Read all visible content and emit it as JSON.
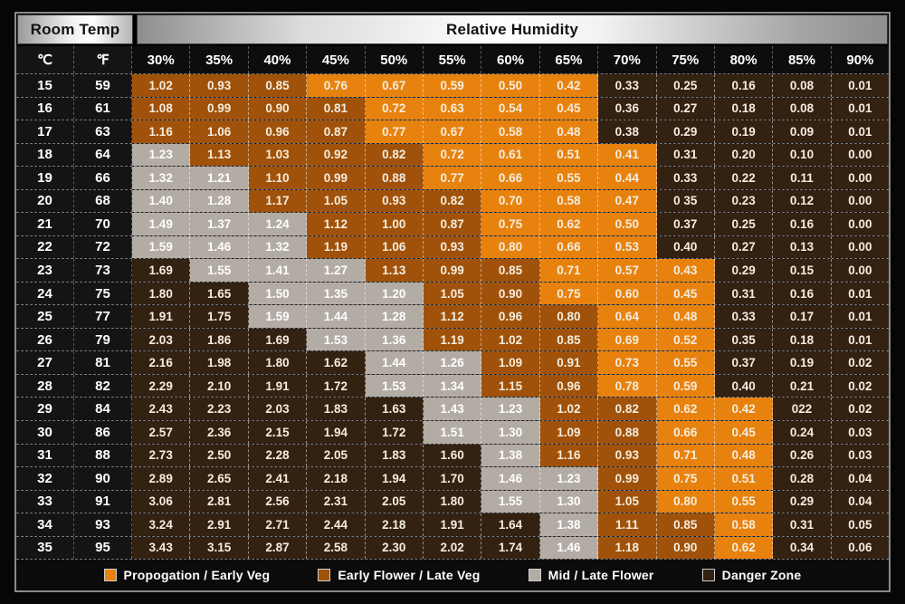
{
  "header": {
    "room_temp": "Room Temp",
    "relative_humidity": "Relative Humidity"
  },
  "columns": {
    "celsius": "℃",
    "fahrenheit": "℉"
  },
  "zone_colors": {
    "P": "#E8820E",
    "E": "#A0520A",
    "M": "#B3ACA4",
    "D": "#332112"
  },
  "legend": [
    {
      "label": "Propogation / Early Veg",
      "zone": "P"
    },
    {
      "label": "Early Flower / Late Veg",
      "zone": "E"
    },
    {
      "label": "Mid / Late Flower",
      "zone": "M"
    },
    {
      "label": "Danger Zone",
      "zone": "D"
    }
  ],
  "chart_data": {
    "type": "heatmap",
    "title": "VPD by Room Temp and Relative Humidity",
    "xlabel": "Relative Humidity",
    "ylabel": "Room Temp",
    "x": [
      "30%",
      "35%",
      "40%",
      "45%",
      "50%",
      "55%",
      "60%",
      "65%",
      "70%",
      "75%",
      "80%",
      "85%",
      "90%"
    ],
    "zone_legend": {
      "P": "Propogation / Early Veg",
      "E": "Early Flower / Late Veg",
      "M": "Mid / Late Flower",
      "D": "Danger Zone"
    },
    "rows": [
      {
        "c": "15",
        "f": "59",
        "values": [
          "1.02",
          "0.93",
          "0.85",
          "0.76",
          "0.67",
          "0.59",
          "0.50",
          "0.42",
          "0.33",
          "0.25",
          "0.16",
          "0.08",
          "0.01"
        ],
        "zones": "EEEPPPPPDDDDD"
      },
      {
        "c": "16",
        "f": "61",
        "values": [
          "1.08",
          "0.99",
          "0.90",
          "0.81",
          "0.72",
          "0.63",
          "0.54",
          "0.45",
          "0.36",
          "0.27",
          "0.18",
          "0.08",
          "0.01"
        ],
        "zones": "EEEEPPPPDDDDD"
      },
      {
        "c": "17",
        "f": "63",
        "values": [
          "1.16",
          "1.06",
          "0.96",
          "0.87",
          "0.77",
          "0.67",
          "0.58",
          "0.48",
          "0.38",
          "0.29",
          "0.19",
          "0.09",
          "0.01"
        ],
        "zones": "EEEEPPPPDDDDD"
      },
      {
        "c": "18",
        "f": "64",
        "values": [
          "1.23",
          "1.13",
          "1.03",
          "0.92",
          "0.82",
          "0.72",
          "0.61",
          "0.51",
          "0.41",
          "0.31",
          "0.20",
          "0.10",
          "0.00"
        ],
        "zones": "MEEEEPPPPDDDD"
      },
      {
        "c": "19",
        "f": "66",
        "values": [
          "1.32",
          "1.21",
          "1.10",
          "0.99",
          "0.88",
          "0.77",
          "0.66",
          "0.55",
          "0.44",
          "0.33",
          "0.22",
          "0.11",
          "0.00"
        ],
        "zones": "MMEEEPPPPDDDD"
      },
      {
        "c": "20",
        "f": "68",
        "values": [
          "1.40",
          "1.28",
          "1.17",
          "1.05",
          "0.93",
          "0.82",
          "0.70",
          "0.58",
          "0.47",
          "0 35",
          "0.23",
          "0.12",
          "0.00"
        ],
        "zones": "MMEEEEPPPDDDD"
      },
      {
        "c": "21",
        "f": "70",
        "values": [
          "1.49",
          "1.37",
          "1.24",
          "1.12",
          "1.00",
          "0.87",
          "0.75",
          "0.62",
          "0.50",
          "0.37",
          "0.25",
          "0.16",
          "0.00"
        ],
        "zones": "MMMEEEPPPDDDD"
      },
      {
        "c": "22",
        "f": "72",
        "values": [
          "1.59",
          "1.46",
          "1.32",
          "1.19",
          "1.06",
          "0.93",
          "0.80",
          "0.66",
          "0.53",
          "0.40",
          "0.27",
          "0.13",
          "0.00"
        ],
        "zones": "MMMEEEPPPDDDD"
      },
      {
        "c": "23",
        "f": "73",
        "values": [
          "1.69",
          "1.55",
          "1.41",
          "1.27",
          "1.13",
          "0.99",
          "0.85",
          "0.71",
          "0.57",
          "0.43",
          "0.29",
          "0.15",
          "0.00"
        ],
        "zones": "DMMMEEEPPPDDD"
      },
      {
        "c": "24",
        "f": "75",
        "values": [
          "1.80",
          "1.65",
          "1.50",
          "1.35",
          "1.20",
          "1.05",
          "0.90",
          "0.75",
          "0.60",
          "0.45",
          "0.31",
          "0.16",
          "0.01"
        ],
        "zones": "DDMMMEEPPPDDD"
      },
      {
        "c": "25",
        "f": "77",
        "values": [
          "1.91",
          "1.75",
          "1.59",
          "1.44",
          "1.28",
          "1.12",
          "0.96",
          "0.80",
          "0.64",
          "0.48",
          "0.33",
          "0.17",
          "0.01"
        ],
        "zones": "DDMMMEEEPPDDD"
      },
      {
        "c": "26",
        "f": "79",
        "values": [
          "2.03",
          "1.86",
          "1.69",
          "1.53",
          "1.36",
          "1.19",
          "1.02",
          "0.85",
          "0.69",
          "0.52",
          "0.35",
          "0.18",
          "0.01"
        ],
        "zones": "DDDMMEEEPPDDD"
      },
      {
        "c": "27",
        "f": "81",
        "values": [
          "2.16",
          "1.98",
          "1.80",
          "1.62",
          "1.44",
          "1.26",
          "1.09",
          "0.91",
          "0.73",
          "0.55",
          "0.37",
          "0.19",
          "0.02"
        ],
        "zones": "DDDDMMEEPPDDD"
      },
      {
        "c": "28",
        "f": "82",
        "values": [
          "2.29",
          "2.10",
          "1.91",
          "1.72",
          "1.53",
          "1.34",
          "1.15",
          "0.96",
          "0.78",
          "0.59",
          "0.40",
          "0.21",
          "0.02"
        ],
        "zones": "DDDDMMEEPPDDD"
      },
      {
        "c": "29",
        "f": "84",
        "values": [
          "2.43",
          "2.23",
          "2.03",
          "1.83",
          "1.63",
          "1.43",
          "1.23",
          "1.02",
          "0.82",
          "0.62",
          "0.42",
          "022",
          "0.02"
        ],
        "zones": "DDDDDMMEEPPDD"
      },
      {
        "c": "30",
        "f": "86",
        "values": [
          "2.57",
          "2.36",
          "2.15",
          "1.94",
          "1.72",
          "1.51",
          "1.30",
          "1.09",
          "0.88",
          "0.66",
          "0.45",
          "0.24",
          "0.03"
        ],
        "zones": "DDDDDMMEEPPDD"
      },
      {
        "c": "31",
        "f": "88",
        "values": [
          "2.73",
          "2.50",
          "2.28",
          "2.05",
          "1.83",
          "1.60",
          "1.38",
          "1.16",
          "0.93",
          "0.71",
          "0.48",
          "0.26",
          "0.03"
        ],
        "zones": "DDDDDDMEEPPDD"
      },
      {
        "c": "32",
        "f": "90",
        "values": [
          "2.89",
          "2.65",
          "2.41",
          "2.18",
          "1.94",
          "1.70",
          "1.46",
          "1.23",
          "0.99",
          "0.75",
          "0.51",
          "0.28",
          "0.04"
        ],
        "zones": "DDDDDDMMEPPDD"
      },
      {
        "c": "33",
        "f": "91",
        "values": [
          "3.06",
          "2.81",
          "2.56",
          "2.31",
          "2.05",
          "1.80",
          "1.55",
          "1.30",
          "1.05",
          "0.80",
          "0.55",
          "0.29",
          "0.04"
        ],
        "zones": "DDDDDDMMEPPDD"
      },
      {
        "c": "34",
        "f": "93",
        "values": [
          "3.24",
          "2.91",
          "2.71",
          "2.44",
          "2.18",
          "1.91",
          "1.64",
          "1.38",
          "1.11",
          "0.85",
          "0.58",
          "0.31",
          "0.05"
        ],
        "zones": "DDDDDDDMEEPDD"
      },
      {
        "c": "35",
        "f": "95",
        "values": [
          "3.43",
          "3.15",
          "2.87",
          "2.58",
          "2.30",
          "2.02",
          "1.74",
          "1.46",
          "1.18",
          "0.90",
          "0.62",
          "0.34",
          "0.06"
        ],
        "zones": "DDDDDDDMEEPDD"
      }
    ]
  }
}
